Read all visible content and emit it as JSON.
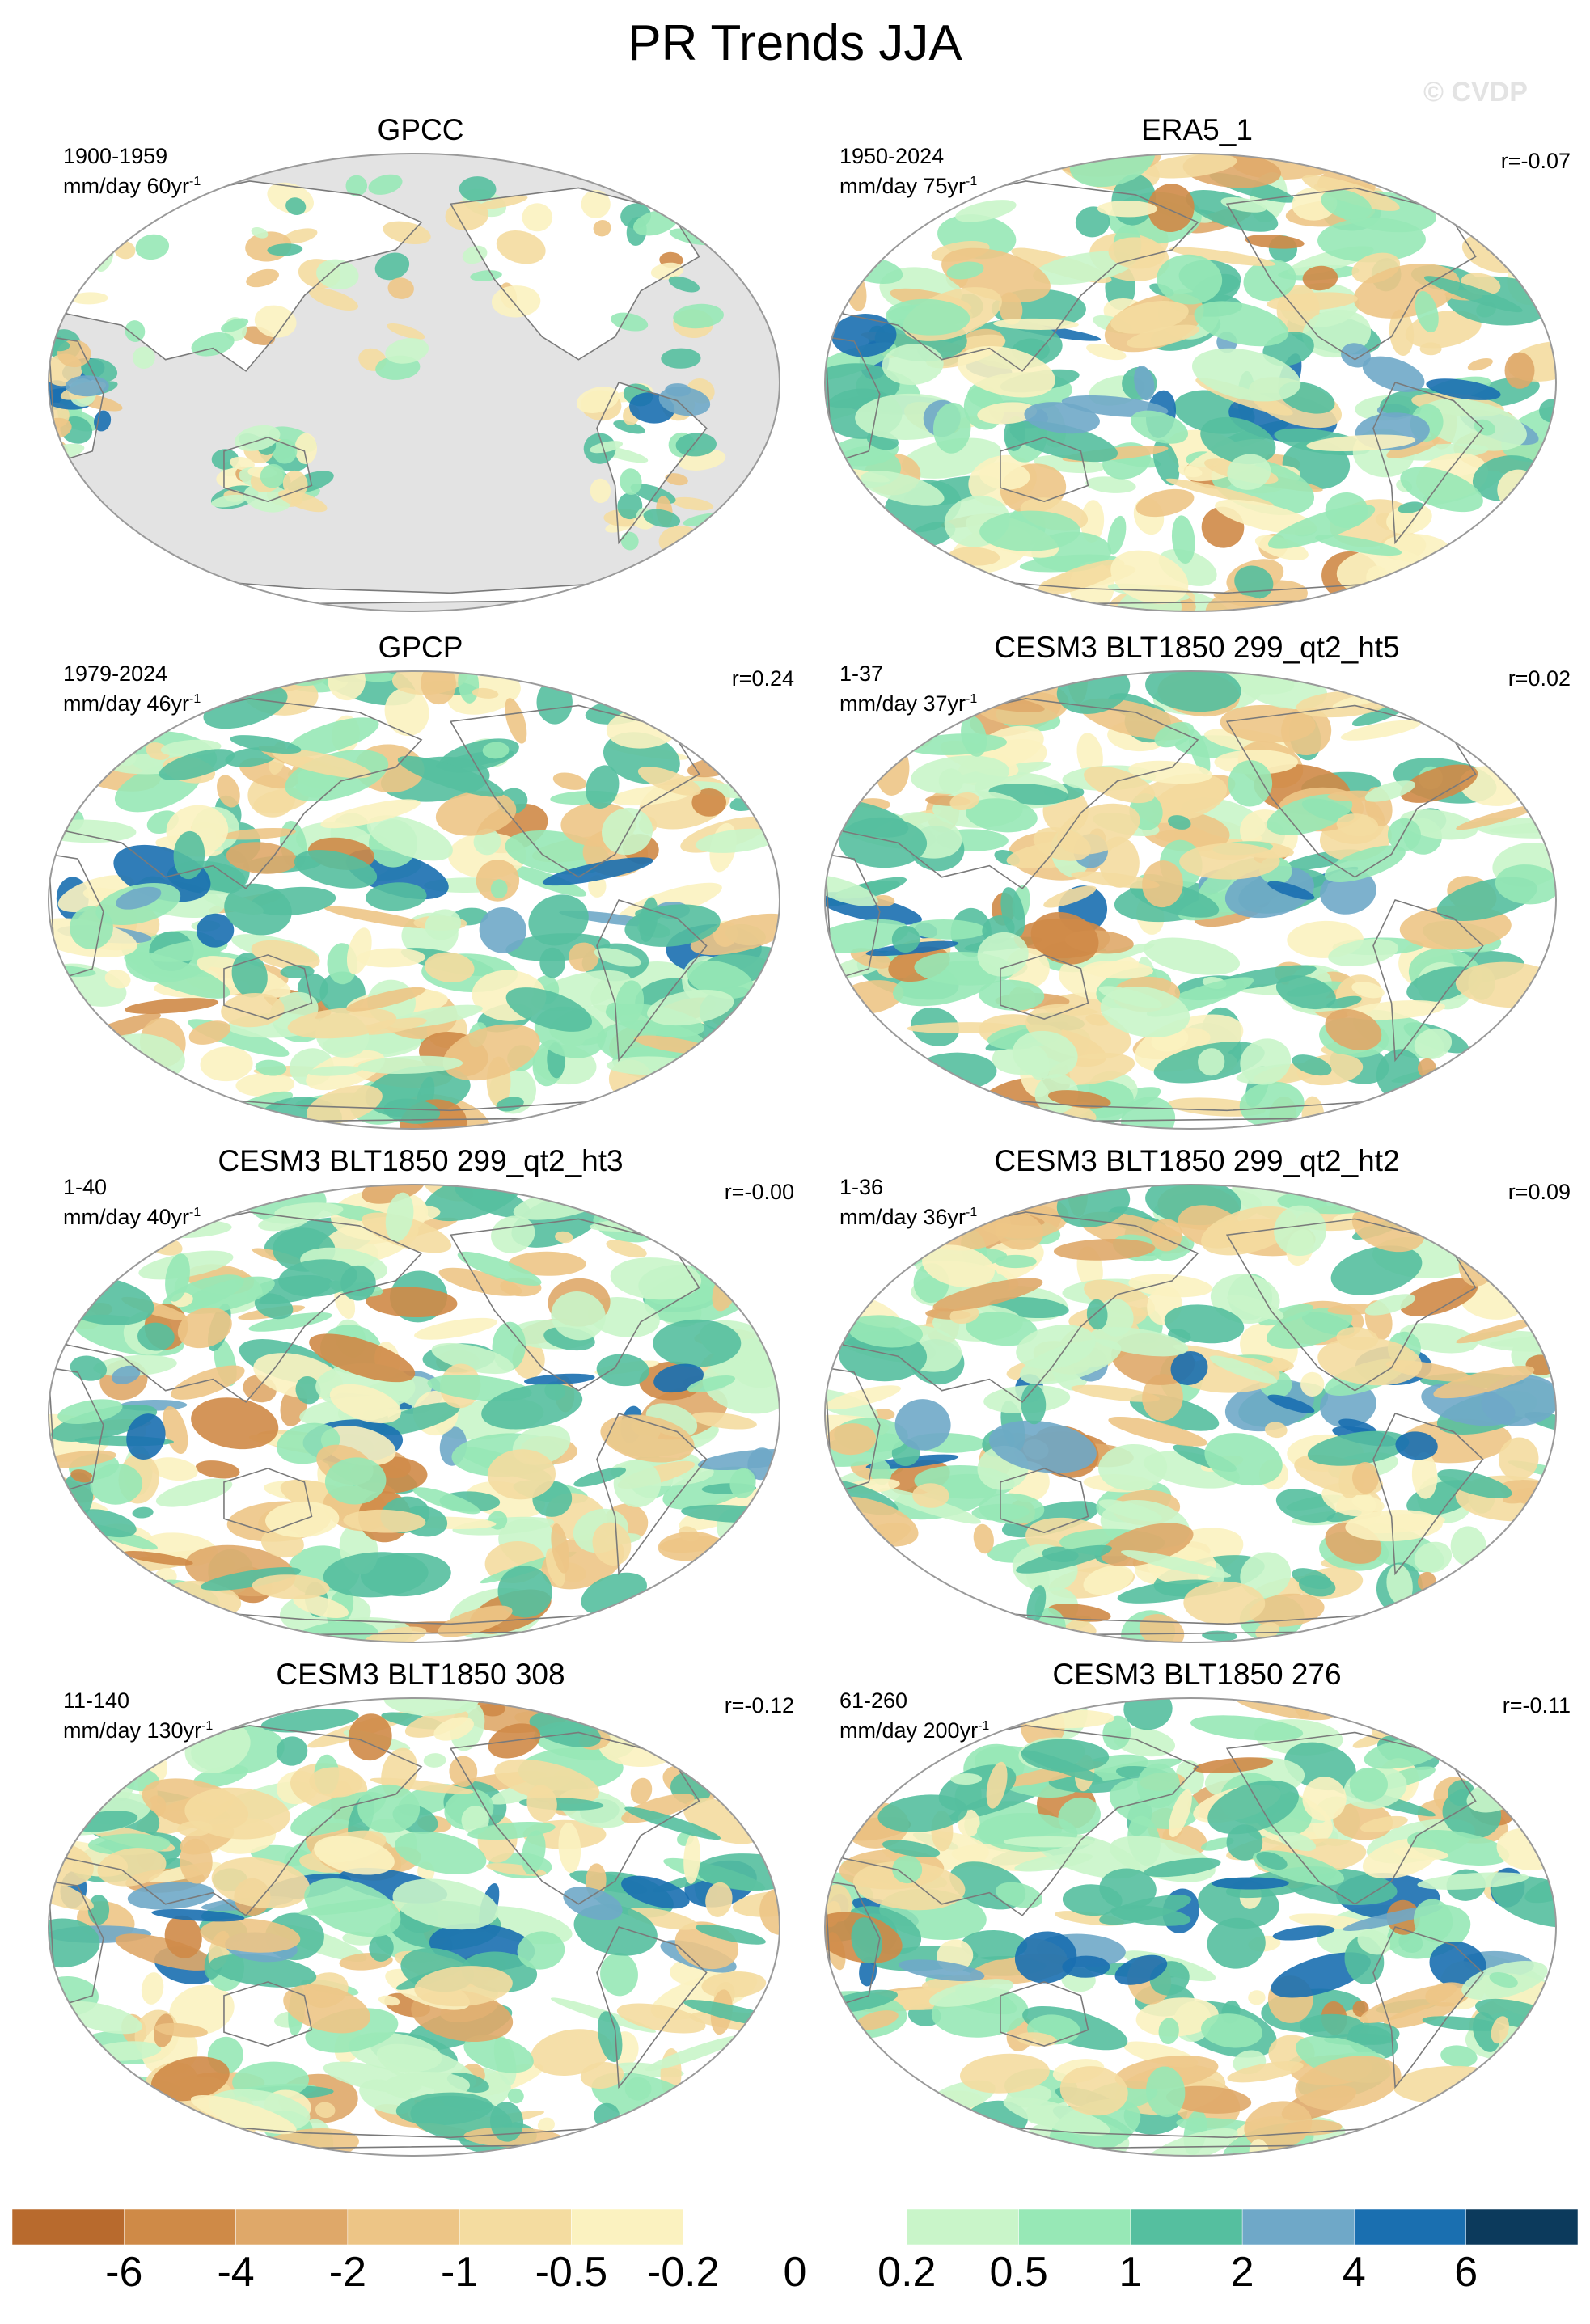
{
  "title": "PR Trends JJA",
  "watermark": "© CVDP",
  "panels": [
    {
      "title": "GPCC",
      "period": "1900-1959",
      "units": "mm/day 60yr",
      "units_exp": "-1",
      "corr": "",
      "land_only": true
    },
    {
      "title": "ERA5_1",
      "period": "1950-2024",
      "units": "mm/day 75yr",
      "units_exp": "-1",
      "corr": "r=-0.07",
      "land_only": false
    },
    {
      "title": "GPCP",
      "period": "1979-2024",
      "units": "mm/day 46yr",
      "units_exp": "-1",
      "corr": "r=0.24",
      "land_only": false
    },
    {
      "title": "CESM3 BLT1850 299_qt2_ht5",
      "period": "1-37",
      "units": "mm/day 37yr",
      "units_exp": "-1",
      "corr": "r=0.02",
      "land_only": false
    },
    {
      "title": "CESM3 BLT1850 299_qt2_ht3",
      "period": "1-40",
      "units": "mm/day 40yr",
      "units_exp": "-1",
      "corr": "r=-0.00",
      "land_only": false
    },
    {
      "title": "CESM3 BLT1850 299_qt2_ht2",
      "period": "1-36",
      "units": "mm/day 36yr",
      "units_exp": "-1",
      "corr": "r=0.09",
      "land_only": false
    },
    {
      "title": "CESM3 BLT1850 308",
      "period": "11-140",
      "units": "mm/day 130yr",
      "units_exp": "-1",
      "corr": "r=-0.12",
      "land_only": false
    },
    {
      "title": "CESM3 BLT1850 276",
      "period": "61-260",
      "units": "mm/day 200yr",
      "units_exp": "-1",
      "corr": "r=-0.11",
      "land_only": false
    }
  ],
  "colorbar": {
    "colors": [
      "#b86a2d",
      "#cf8a47",
      "#dfa869",
      "#edc586",
      "#f4dca0",
      "#fbf2c0",
      "#ffffff",
      "#ffffff",
      "#c9f5c9",
      "#97e8b6",
      "#55bf9f",
      "#6fa8c8",
      "#1a6fb0",
      "#0c3a5c"
    ],
    "labels": [
      "-6",
      "-4",
      "-2",
      "-1",
      "-0.5",
      "-0.2",
      "0",
      "0.2",
      "0.5",
      "1",
      "2",
      "4",
      "6"
    ]
  },
  "map_colors": {
    "missing": "#e3e3e3",
    "coast": "#7a7a7a",
    "border": "#9a9a9a"
  }
}
